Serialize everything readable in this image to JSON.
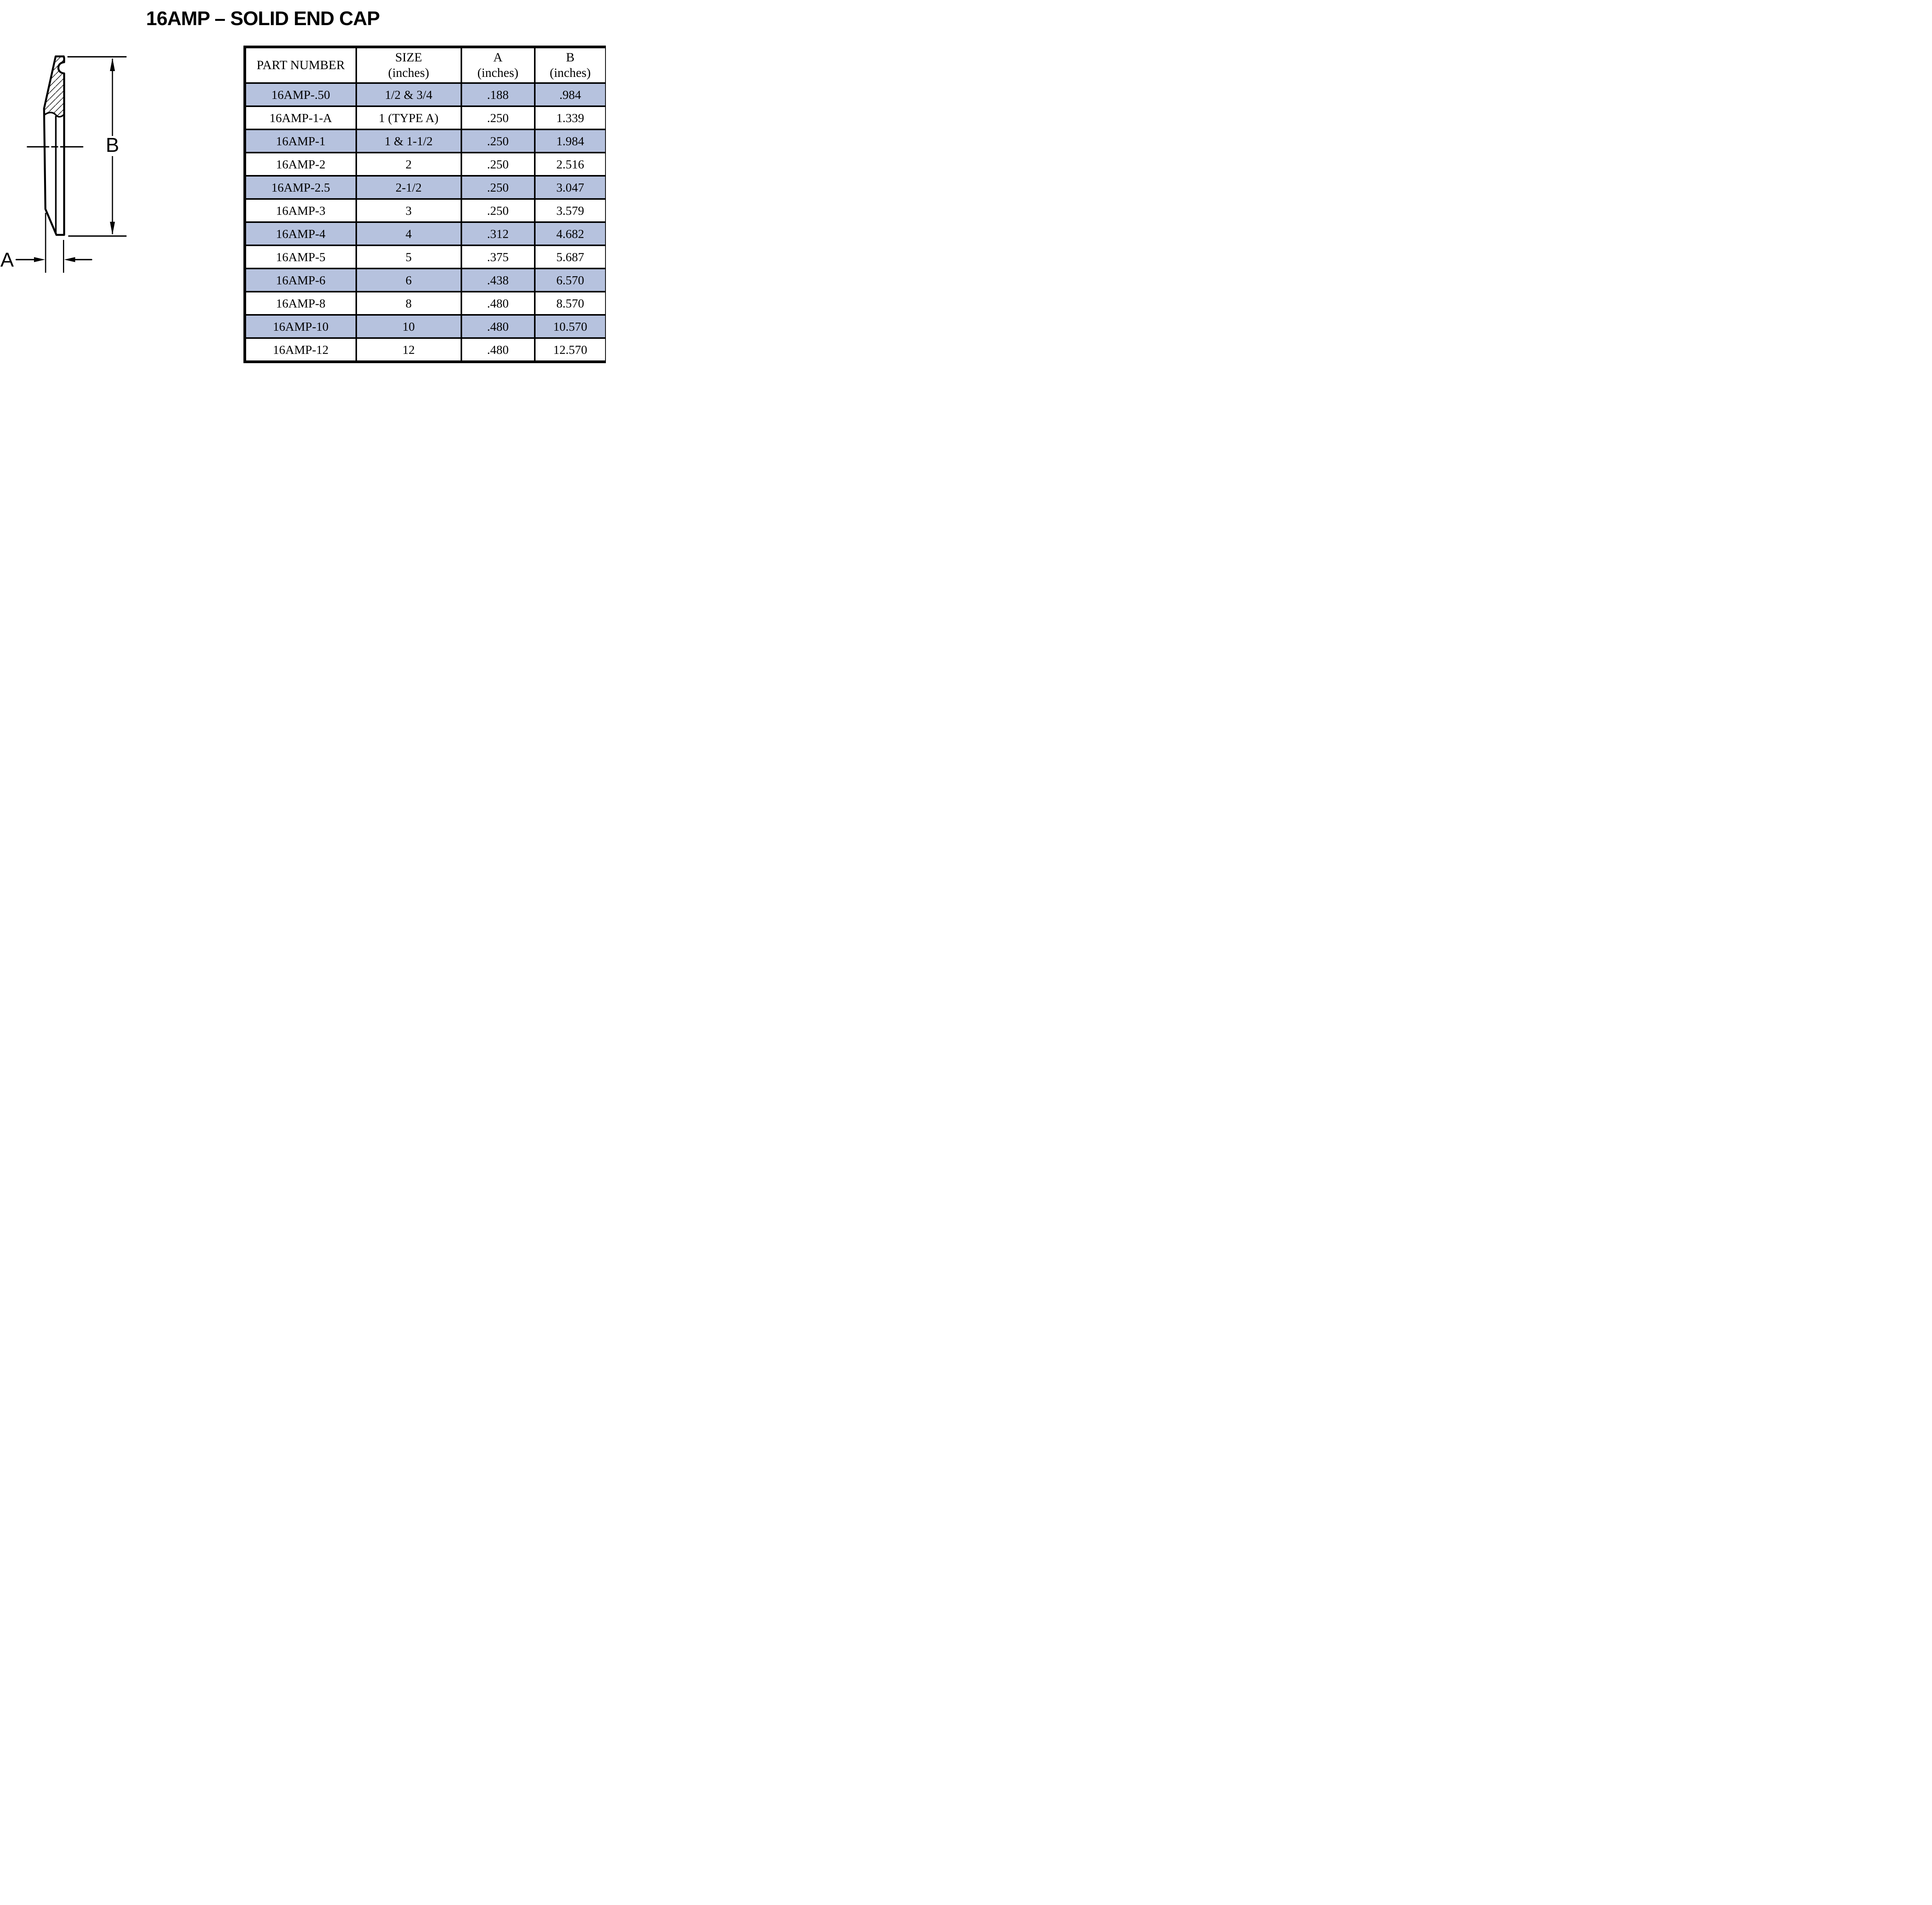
{
  "title": "16AMP – SOLID END CAP",
  "colors": {
    "row_shaded": "#b6c2de",
    "border": "#000000",
    "background": "#ffffff",
    "text": "#000000"
  },
  "diagram": {
    "label_a": "A",
    "label_b": "B"
  },
  "table": {
    "columns": [
      {
        "label": "PART NUMBER",
        "sublabel": ""
      },
      {
        "label": "SIZE",
        "sublabel": "(inches)"
      },
      {
        "label": "A",
        "sublabel": "(inches)"
      },
      {
        "label": "B",
        "sublabel": "(inches)"
      }
    ],
    "rows": [
      {
        "part_number": "16AMP-.50",
        "size": "1/2 & 3/4",
        "a": ".188",
        "b": ".984",
        "shaded": true
      },
      {
        "part_number": "16AMP-1-A",
        "size": "1 (TYPE A)",
        "a": ".250",
        "b": "1.339",
        "shaded": false
      },
      {
        "part_number": "16AMP-1",
        "size": "1 & 1-1/2",
        "a": ".250",
        "b": "1.984",
        "shaded": true
      },
      {
        "part_number": "16AMP-2",
        "size": "2",
        "a": ".250",
        "b": "2.516",
        "shaded": false
      },
      {
        "part_number": "16AMP-2.5",
        "size": "2-1/2",
        "a": ".250",
        "b": "3.047",
        "shaded": true
      },
      {
        "part_number": "16AMP-3",
        "size": "3",
        "a": ".250",
        "b": "3.579",
        "shaded": false
      },
      {
        "part_number": "16AMP-4",
        "size": "4",
        "a": ".312",
        "b": "4.682",
        "shaded": true
      },
      {
        "part_number": "16AMP-5",
        "size": "5",
        "a": ".375",
        "b": "5.687",
        "shaded": false
      },
      {
        "part_number": "16AMP-6",
        "size": "6",
        "a": ".438",
        "b": "6.570",
        "shaded": true
      },
      {
        "part_number": "16AMP-8",
        "size": "8",
        "a": ".480",
        "b": "8.570",
        "shaded": false
      },
      {
        "part_number": "16AMP-10",
        "size": "10",
        "a": ".480",
        "b": "10.570",
        "shaded": true
      },
      {
        "part_number": "16AMP-12",
        "size": "12",
        "a": ".480",
        "b": "12.570",
        "shaded": false
      }
    ]
  }
}
